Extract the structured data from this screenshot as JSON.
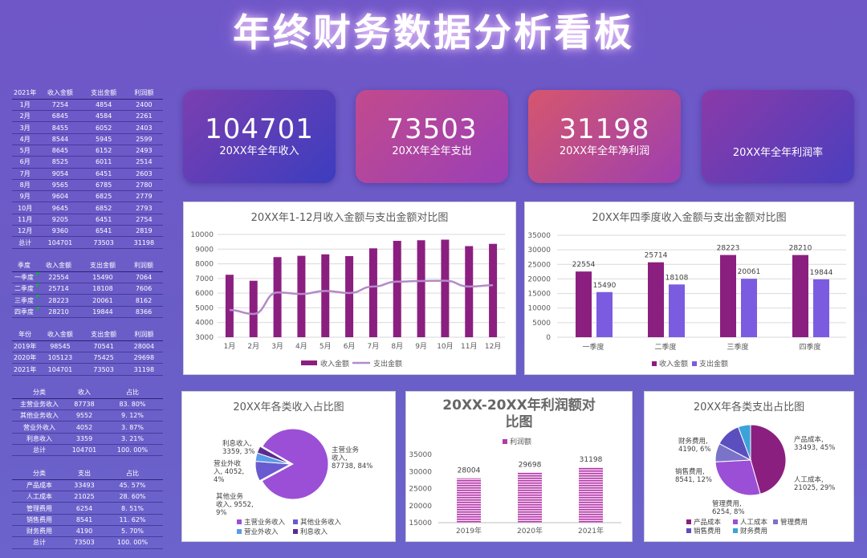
{
  "title": "年终财务数据分析看板",
  "kpis": [
    {
      "value": "104701",
      "label": "20XX年全年收入",
      "from": "#7b3fb0",
      "to": "#3c3dbf"
    },
    {
      "value": "73503",
      "label": "20XX年全年支出",
      "from": "#c24a8d",
      "to": "#9a3fb7"
    },
    {
      "value": "31198",
      "label": "20XX年全年净利润",
      "from": "#d6566e",
      "to": "#9c3fb0"
    },
    {
      "value": "",
      "label": "20XX年全年利润率",
      "from": "#8b3aa8",
      "to": "#4a3fbf"
    }
  ],
  "tables": {
    "monthly": {
      "header": [
        "2021年",
        "收入金额",
        "支出金额",
        "利润额"
      ],
      "rows": [
        [
          "1月",
          "7254",
          "4854",
          "2400"
        ],
        [
          "2月",
          "6845",
          "4584",
          "2261"
        ],
        [
          "3月",
          "8455",
          "6052",
          "2403"
        ],
        [
          "4月",
          "8544",
          "5945",
          "2599"
        ],
        [
          "5月",
          "8645",
          "6152",
          "2493"
        ],
        [
          "6月",
          "8525",
          "6011",
          "2514"
        ],
        [
          "7月",
          "9054",
          "6451",
          "2603"
        ],
        [
          "8月",
          "9565",
          "6785",
          "2780"
        ],
        [
          "9月",
          "9604",
          "6825",
          "2779"
        ],
        [
          "10月",
          "9645",
          "6852",
          "2793"
        ],
        [
          "11月",
          "9205",
          "6451",
          "2754"
        ],
        [
          "12月",
          "9360",
          "6541",
          "2819"
        ],
        [
          "总计",
          "104701",
          "73503",
          "31198"
        ]
      ]
    },
    "quarterly": {
      "header": [
        "季度",
        "收入金额",
        "支出金额",
        "利润额"
      ],
      "rows": [
        [
          "一季度",
          "22554",
          "15490",
          "7064"
        ],
        [
          "二季度",
          "25714",
          "18108",
          "7606"
        ],
        [
          "三季度",
          "28223",
          "20061",
          "8162"
        ],
        [
          "四季度",
          "28210",
          "19844",
          "8366"
        ]
      ]
    },
    "yearly": {
      "header": [
        "年份",
        "收入金额",
        "支出金额",
        "利润额"
      ],
      "rows": [
        [
          "2019年",
          "98545",
          "70541",
          "28004"
        ],
        [
          "2020年",
          "105123",
          "75425",
          "29698"
        ],
        [
          "2021年",
          "104701",
          "73503",
          "31198"
        ]
      ]
    },
    "income": {
      "header": [
        "分类",
        "收入",
        "占比"
      ],
      "rows": [
        [
          "主营业务收入",
          "87738",
          "83. 80%"
        ],
        [
          "其他业务收入",
          "9552",
          "9. 12%"
        ],
        [
          "营业外收入",
          "4052",
          "3. 87%"
        ],
        [
          "利息收入",
          "3359",
          "3. 21%"
        ],
        [
          "总计",
          "104701",
          "100. 00%"
        ]
      ]
    },
    "expense": {
      "header": [
        "分类",
        "支出",
        "占比"
      ],
      "rows": [
        [
          "产品成本",
          "33493",
          "45. 57%"
        ],
        [
          "人工成本",
          "21025",
          "28. 60%"
        ],
        [
          "管理费用",
          "6254",
          "8. 51%"
        ],
        [
          "销售费用",
          "8541",
          "11. 62%"
        ],
        [
          "财务费用",
          "4190",
          "5. 70%"
        ],
        [
          "总计",
          "73503",
          "100. 00%"
        ]
      ]
    }
  },
  "chart_data": [
    {
      "type": "bar",
      "title": "20XX年1-12月收入金额与支出金额对比图",
      "categories": [
        "1月",
        "2月",
        "3月",
        "4月",
        "5月",
        "6月",
        "7月",
        "8月",
        "9月",
        "10月",
        "11月",
        "12月"
      ],
      "series": [
        {
          "name": "收入金额",
          "kind": "bar",
          "color": "#8b1f80",
          "values": [
            7254,
            6845,
            8455,
            8544,
            8645,
            8525,
            9054,
            9565,
            9604,
            9645,
            9205,
            9360
          ]
        },
        {
          "name": "支出金额",
          "kind": "line",
          "color": "#b48ac8",
          "values": [
            4854,
            4584,
            6052,
            5945,
            6152,
            6011,
            6451,
            6785,
            6825,
            6852,
            6451,
            6541
          ]
        }
      ],
      "ylim": [
        3000,
        10000
      ],
      "yticks": [
        "10000",
        "9000",
        "8000",
        "7000",
        "6000",
        "5000",
        "4000",
        "3000"
      ],
      "grid": true,
      "legend": "bottom"
    },
    {
      "type": "bar",
      "title": "20XX年四季度收入金额与支出金额对比图",
      "categories": [
        "一季度",
        "二季度",
        "三季度",
        "四季度"
      ],
      "series": [
        {
          "name": "收入金额",
          "color": "#8b1f80",
          "values": [
            22554,
            25714,
            28223,
            28210
          ]
        },
        {
          "name": "支出金额",
          "color": "#7b5ce0",
          "values": [
            15490,
            18108,
            20061,
            19844
          ]
        }
      ],
      "ylim": [
        0,
        35000
      ],
      "yticks": [
        "35000",
        "30000",
        "25000",
        "20000",
        "15000",
        "10000",
        "5000",
        "0"
      ],
      "grid": true,
      "legend": "bottom"
    },
    {
      "type": "pie",
      "title": "20XX年各类收入占比图",
      "slices": [
        {
          "name": "主营业务收入",
          "value": 87738,
          "pct": "84%",
          "color": "#9b4fd6"
        },
        {
          "name": "其他业务收入",
          "value": 9552,
          "pct": "9%",
          "color": "#6a5ad0"
        },
        {
          "name": "营业外收入",
          "value": 4052,
          "pct": "4%",
          "color": "#5b9be8"
        },
        {
          "name": "利息收入",
          "value": 3359,
          "pct": "3%",
          "color": "#5b2c8e"
        }
      ],
      "labels": [
        {
          "lines": [
            "主营业务",
            "收入,",
            "87738, 84%"
          ]
        },
        {
          "lines": [
            "其他业务",
            "收入, 9552,",
            "9%"
          ]
        },
        {
          "lines": [
            "营业外收",
            "入, 4052,",
            "4%"
          ]
        },
        {
          "lines": [
            "利息收入,",
            "3359, 3%"
          ]
        }
      ],
      "legend": "bottom"
    },
    {
      "type": "bar",
      "title": "20XX-20XX年利润额对比图",
      "title_lines": [
        "20XX-20XX年利润额对",
        "比图"
      ],
      "categories": [
        "2019年",
        "2020年",
        "2021年"
      ],
      "series": [
        {
          "name": "利润额",
          "color": "#b23aa9",
          "values": [
            28004,
            29698,
            31198
          ]
        }
      ],
      "ylim": [
        15000,
        35000
      ],
      "yticks": [
        "35000",
        "30000",
        "25000",
        "20000",
        "15000"
      ],
      "legend": "top"
    },
    {
      "type": "pie",
      "title": "20XX年各类支出占比图",
      "slices": [
        {
          "name": "产品成本",
          "value": 33493,
          "pct": "45%",
          "color": "#8b1f80"
        },
        {
          "name": "人工成本",
          "value": 21025,
          "pct": "29%",
          "color": "#9b4fd6"
        },
        {
          "name": "管理费用",
          "value": 6254,
          "pct": "8%",
          "color": "#7a73c9"
        },
        {
          "name": "销售费用",
          "value": 8541,
          "pct": "12%",
          "color": "#5b4fc0"
        },
        {
          "name": "财务费用",
          "value": 4190,
          "pct": "6%",
          "color": "#3ba3d8"
        }
      ],
      "labels": [
        {
          "lines": [
            "产品成本,",
            "33493, 45%"
          ]
        },
        {
          "lines": [
            "人工成本,",
            "21025, 29%"
          ]
        },
        {
          "lines": [
            "管理费用,",
            "6254, 8%"
          ]
        },
        {
          "lines": [
            "销售费用,",
            "8541, 12%"
          ]
        },
        {
          "lines": [
            "财务费用,",
            "4190, 6%"
          ]
        }
      ],
      "legend": "bottom"
    }
  ]
}
